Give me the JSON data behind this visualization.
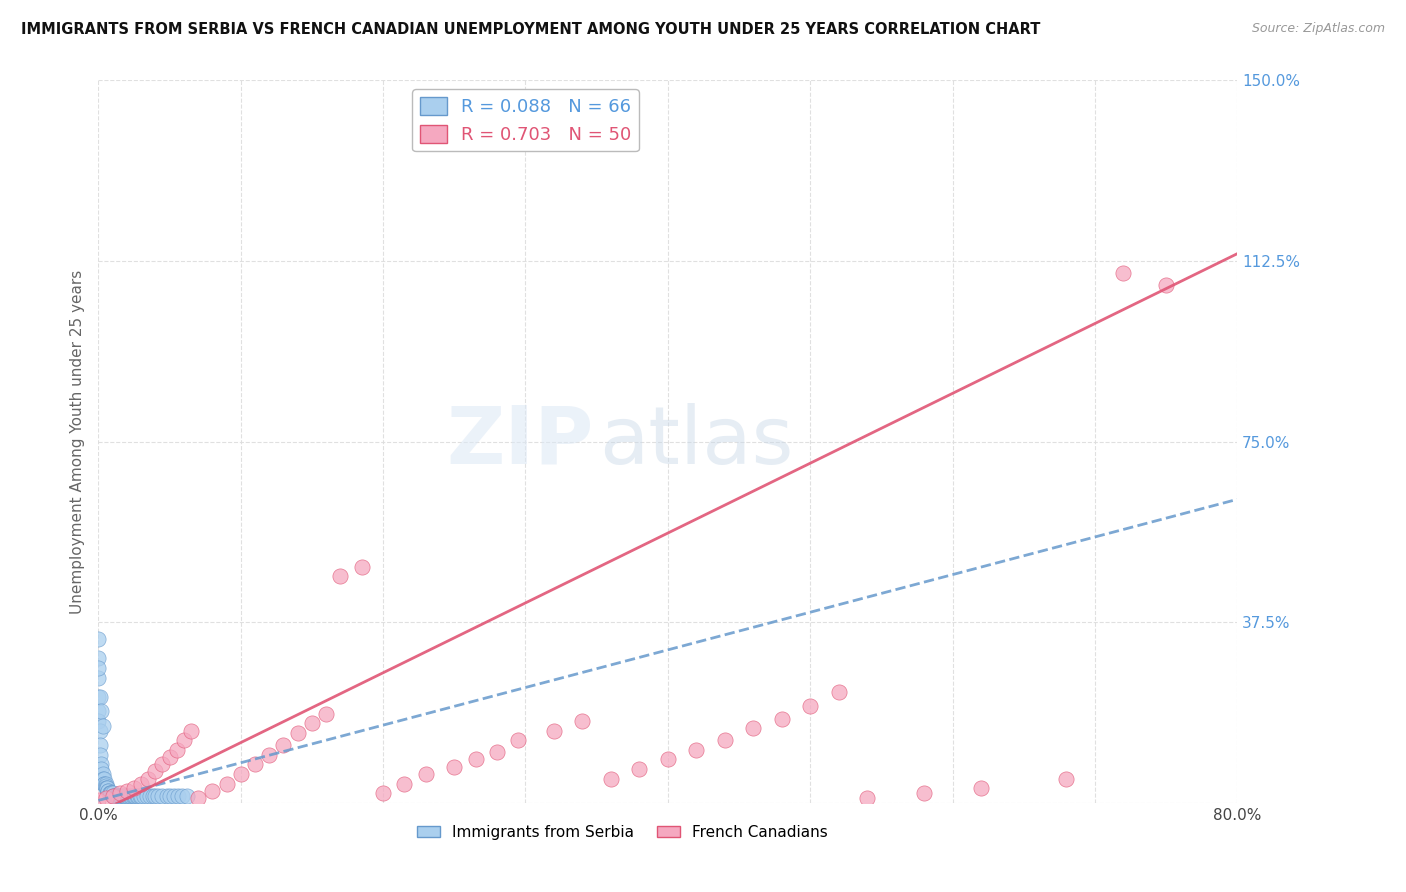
{
  "title": "IMMIGRANTS FROM SERBIA VS FRENCH CANADIAN UNEMPLOYMENT AMONG YOUTH UNDER 25 YEARS CORRELATION CHART",
  "source": "Source: ZipAtlas.com",
  "ylabel": "Unemployment Among Youth under 25 years",
  "watermark_zip": "ZIP",
  "watermark_atlas": "atlas",
  "xlim": [
    0,
    0.8
  ],
  "ylim": [
    0,
    1.5
  ],
  "xticks": [
    0.0,
    0.1,
    0.2,
    0.3,
    0.4,
    0.5,
    0.6,
    0.7,
    0.8
  ],
  "xticklabels": [
    "0.0%",
    "",
    "",
    "",
    "",
    "",
    "",
    "",
    "80.0%"
  ],
  "ytick_vals": [
    0.0,
    0.375,
    0.75,
    1.125,
    1.5
  ],
  "ytick_labels": [
    "",
    "37.5%",
    "75.0%",
    "112.5%",
    "150.0%"
  ],
  "serbia_R": 0.088,
  "serbia_N": 66,
  "french_R": 0.703,
  "french_N": 50,
  "serbia_color": "#aacfee",
  "french_color": "#f5a8c0",
  "serbia_line_color": "#6699cc",
  "french_line_color": "#e05575",
  "ytick_color": "#5599dd",
  "background_color": "#ffffff",
  "grid_color": "#dddddd",
  "serbia_line_x": [
    0.0,
    0.8
  ],
  "serbia_line_y": [
    0.005,
    0.63
  ],
  "french_line_x": [
    0.0,
    0.8
  ],
  "french_line_y": [
    -0.02,
    1.14
  ],
  "serbia_x": [
    0.0,
    0.0,
    0.0,
    0.0,
    0.0,
    0.0,
    0.0,
    0.001,
    0.001,
    0.001,
    0.001,
    0.002,
    0.002,
    0.002,
    0.003,
    0.003,
    0.003,
    0.004,
    0.004,
    0.004,
    0.005,
    0.005,
    0.005,
    0.006,
    0.006,
    0.007,
    0.007,
    0.008,
    0.008,
    0.009,
    0.009,
    0.01,
    0.01,
    0.011,
    0.012,
    0.013,
    0.014,
    0.015,
    0.016,
    0.017,
    0.018,
    0.019,
    0.02,
    0.021,
    0.022,
    0.023,
    0.024,
    0.025,
    0.026,
    0.027,
    0.028,
    0.029,
    0.03,
    0.032,
    0.034,
    0.036,
    0.038,
    0.04,
    0.042,
    0.045,
    0.048,
    0.05,
    0.053,
    0.056,
    0.059,
    0.062
  ],
  "serbia_y": [
    0.34,
    0.3,
    0.26,
    0.22,
    0.19,
    0.17,
    0.28,
    0.15,
    0.12,
    0.1,
    0.22,
    0.08,
    0.07,
    0.19,
    0.06,
    0.05,
    0.16,
    0.05,
    0.04,
    0.04,
    0.04,
    0.035,
    0.03,
    0.03,
    0.03,
    0.025,
    0.025,
    0.02,
    0.02,
    0.02,
    0.02,
    0.02,
    0.015,
    0.015,
    0.015,
    0.015,
    0.015,
    0.015,
    0.015,
    0.015,
    0.015,
    0.015,
    0.015,
    0.015,
    0.015,
    0.015,
    0.015,
    0.015,
    0.015,
    0.015,
    0.015,
    0.015,
    0.015,
    0.015,
    0.015,
    0.015,
    0.015,
    0.015,
    0.015,
    0.015,
    0.015,
    0.015,
    0.015,
    0.015,
    0.015,
    0.015
  ],
  "french_x": [
    0.0,
    0.005,
    0.01,
    0.015,
    0.02,
    0.025,
    0.03,
    0.035,
    0.04,
    0.045,
    0.05,
    0.055,
    0.06,
    0.065,
    0.07,
    0.08,
    0.09,
    0.1,
    0.11,
    0.12,
    0.13,
    0.14,
    0.15,
    0.16,
    0.17,
    0.185,
    0.2,
    0.215,
    0.23,
    0.25,
    0.265,
    0.28,
    0.295,
    0.32,
    0.34,
    0.36,
    0.38,
    0.4,
    0.42,
    0.44,
    0.46,
    0.48,
    0.5,
    0.52,
    0.54,
    0.58,
    0.62,
    0.68,
    0.72,
    0.75
  ],
  "french_y": [
    0.005,
    0.01,
    0.015,
    0.02,
    0.025,
    0.03,
    0.04,
    0.05,
    0.065,
    0.08,
    0.095,
    0.11,
    0.13,
    0.15,
    0.01,
    0.025,
    0.04,
    0.06,
    0.08,
    0.1,
    0.12,
    0.145,
    0.165,
    0.185,
    0.47,
    0.49,
    0.02,
    0.04,
    0.06,
    0.075,
    0.09,
    0.105,
    0.13,
    0.15,
    0.17,
    0.05,
    0.07,
    0.09,
    0.11,
    0.13,
    0.155,
    0.175,
    0.2,
    0.23,
    0.01,
    0.02,
    0.03,
    0.05,
    1.1,
    1.075
  ]
}
